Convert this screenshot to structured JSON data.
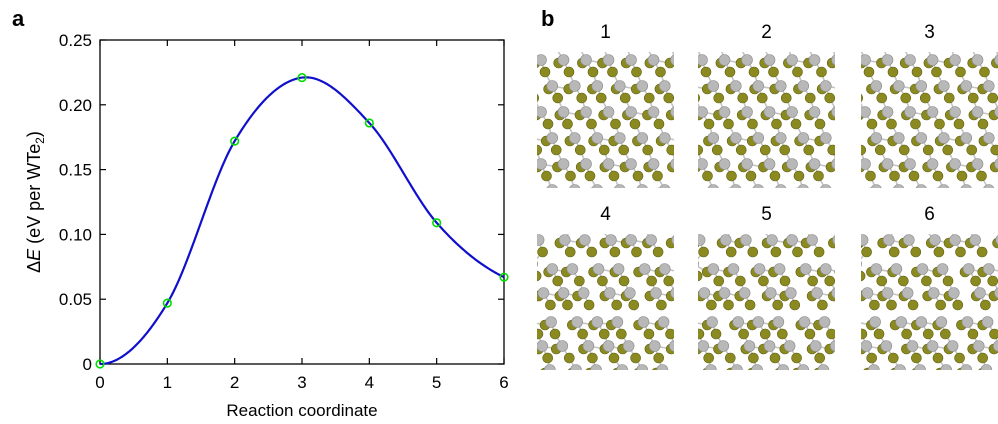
{
  "panel_a": {
    "label": "a"
  },
  "panel_b": {
    "label": "b",
    "structures": [
      {
        "number": "1"
      },
      {
        "number": "2"
      },
      {
        "number": "3"
      },
      {
        "number": "4"
      },
      {
        "number": "5"
      },
      {
        "number": "6"
      }
    ],
    "colors": {
      "tellurium": "#8a8a20",
      "tungsten": "#b8b8b8",
      "bond": "#c4c4c4"
    }
  },
  "chart_data": {
    "type": "line",
    "xlabel": "Reaction coordinate",
    "ylabel": {
      "delta": "Δ",
      "symbol": "E",
      "unit_prefix": " (eV per WTe",
      "unit_sub": "2",
      "unit_suffix": ")"
    },
    "xlim": [
      0,
      6
    ],
    "ylim": [
      0,
      0.25
    ],
    "xticks": [
      0,
      1,
      2,
      3,
      4,
      5,
      6
    ],
    "xtick_labels": [
      "0",
      "1",
      "2",
      "3",
      "4",
      "5",
      "6"
    ],
    "yticks": [
      0,
      0.05,
      0.1,
      0.15,
      0.2,
      0.25
    ],
    "ytick_labels": [
      "0",
      "0.05",
      "0.10",
      "0.15",
      "0.20",
      "0.25"
    ],
    "grid": false,
    "series": [
      {
        "style": "markers",
        "marker": "circle",
        "color": "#00dd00",
        "x": [
          0,
          1,
          2,
          3,
          4,
          5,
          6
        ],
        "y": [
          0,
          0.047,
          0.172,
          0.221,
          0.186,
          0.109,
          0.067
        ]
      },
      {
        "style": "smooth-line",
        "color": "#1010cc",
        "x": [
          0,
          1,
          2,
          3,
          4,
          5,
          6
        ],
        "y": [
          0,
          0.047,
          0.172,
          0.221,
          0.186,
          0.109,
          0.067
        ]
      }
    ]
  }
}
